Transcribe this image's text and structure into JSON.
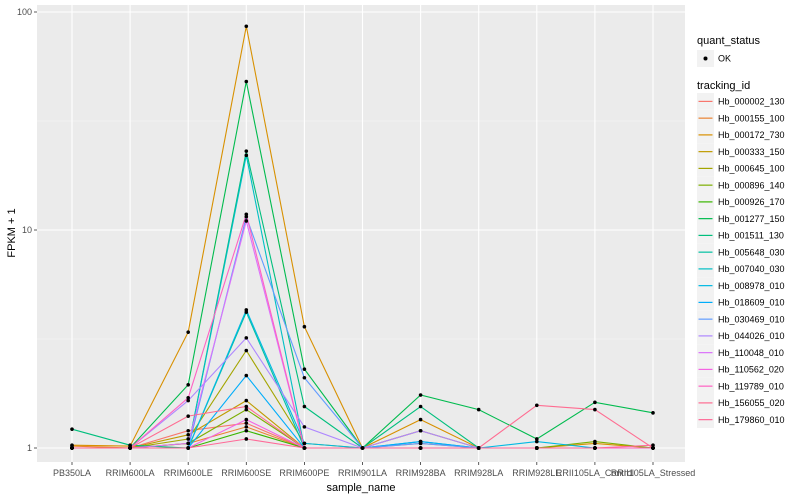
{
  "chart_data": {
    "type": "line",
    "xlabel": "sample_name",
    "ylabel": "FPKM + 1",
    "y_scale": "log10",
    "ylim": [
      1,
      100
    ],
    "y_ticks": [
      1,
      10,
      100
    ],
    "y_tick_labels": [
      "1",
      "10",
      "100"
    ],
    "grid": true,
    "legend_position": "right",
    "categories": [
      "PB350LA",
      "RRIM600LA",
      "RRIM600LE",
      "RRIM600SE",
      "RRIM600PE",
      "RRIM901LA",
      "RRIM928BA",
      "RRIM928LA",
      "RRIM928LE",
      "RRII105LA_Control",
      "RRII105LA_Stressed"
    ],
    "shape_legend": {
      "title": "quant_status",
      "items": [
        "OK"
      ]
    },
    "color_legend_title": "tracking_id",
    "series": [
      {
        "name": "Hb_000002_130",
        "color": "#F8766D",
        "values": [
          1.0,
          1.0,
          1.2,
          1.3,
          1.0,
          1.0,
          1.0,
          1.0,
          1.0,
          1.0,
          1.0
        ]
      },
      {
        "name": "Hb_000155_100",
        "color": "#EA8331",
        "values": [
          1.02,
          1.0,
          1.05,
          1.25,
          1.0,
          1.0,
          1.05,
          1.0,
          1.0,
          1.0,
          1.0
        ]
      },
      {
        "name": "Hb_000172_730",
        "color": "#D89000",
        "values": [
          1.03,
          1.02,
          3.4,
          86,
          3.6,
          1.0,
          1.35,
          1.0,
          1.0,
          1.05,
          1.0
        ]
      },
      {
        "name": "Hb_000333_150",
        "color": "#C09B00",
        "values": [
          1.0,
          1.0,
          1.15,
          1.65,
          1.0,
          1.0,
          1.2,
          1.0,
          1.0,
          1.0,
          1.0
        ]
      },
      {
        "name": "Hb_000645_100",
        "color": "#A3A500",
        "values": [
          1.0,
          1.0,
          1.1,
          2.8,
          1.05,
          1.0,
          1.0,
          1.0,
          1.0,
          1.0,
          1.0
        ]
      },
      {
        "name": "Hb_000896_140",
        "color": "#7CAE00",
        "values": [
          1.0,
          1.0,
          1.05,
          1.5,
          1.0,
          1.0,
          1.0,
          1.0,
          1.0,
          1.07,
          1.0
        ]
      },
      {
        "name": "Hb_000926_170",
        "color": "#39B600",
        "values": [
          1.0,
          1.0,
          1.0,
          1.2,
          1.0,
          1.0,
          1.0,
          1.0,
          1.0,
          1.0,
          1.0
        ]
      },
      {
        "name": "Hb_001277_150",
        "color": "#00BB4E",
        "values": [
          1.0,
          1.0,
          1.95,
          48,
          2.3,
          1.0,
          1.75,
          1.5,
          1.1,
          1.62,
          1.45
        ]
      },
      {
        "name": "Hb_001511_130",
        "color": "#00BF7D",
        "values": [
          1.22,
          1.03,
          1.0,
          23,
          1.55,
          1.0,
          1.55,
          1.0,
          1.0,
          1.0,
          1.0
        ]
      },
      {
        "name": "Hb_005648_030",
        "color": "#00C1A3",
        "values": [
          1.0,
          1.0,
          1.0,
          4.2,
          1.0,
          1.0,
          1.0,
          1.0,
          1.0,
          1.0,
          1.0
        ]
      },
      {
        "name": "Hb_007040_030",
        "color": "#00BFC4",
        "values": [
          1.0,
          1.0,
          1.0,
          22,
          1.0,
          1.0,
          1.07,
          1.0,
          1.0,
          1.0,
          1.0
        ]
      },
      {
        "name": "Hb_008978_010",
        "color": "#00B9E3",
        "values": [
          1.0,
          1.0,
          1.0,
          4.3,
          1.05,
          1.0,
          1.0,
          1.0,
          1.07,
          1.0,
          1.0
        ]
      },
      {
        "name": "Hb_018609_010",
        "color": "#00ADFA",
        "values": [
          1.0,
          1.0,
          1.0,
          2.15,
          1.0,
          1.0,
          1.07,
          1.0,
          1.0,
          1.0,
          1.0
        ]
      },
      {
        "name": "Hb_030469_010",
        "color": "#619CFF",
        "values": [
          1.0,
          1.0,
          1.0,
          11.5,
          2.1,
          1.0,
          1.05,
          1.0,
          1.0,
          1.0,
          1.0
        ]
      },
      {
        "name": "Hb_044026_010",
        "color": "#AE87FF",
        "values": [
          1.0,
          1.0,
          1.65,
          3.2,
          1.25,
          1.0,
          1.2,
          1.0,
          1.0,
          1.0,
          1.0
        ]
      },
      {
        "name": "Hb_110048_010",
        "color": "#DB72FB",
        "values": [
          1.0,
          1.0,
          1.05,
          11,
          1.0,
          1.0,
          1.0,
          1.0,
          1.0,
          1.0,
          1.0
        ]
      },
      {
        "name": "Hb_110562_020",
        "color": "#F564E3",
        "values": [
          1.0,
          1.0,
          1.0,
          1.35,
          1.0,
          1.0,
          1.0,
          1.0,
          1.0,
          1.0,
          1.0
        ]
      },
      {
        "name": "Hb_119789_010",
        "color": "#FF61C3",
        "values": [
          1.0,
          1.0,
          1.7,
          11.8,
          1.0,
          1.0,
          1.0,
          1.0,
          1.0,
          1.0,
          1.0
        ]
      },
      {
        "name": "Hb_156055_020",
        "color": "#FF6C91",
        "values": [
          1.0,
          1.0,
          1.4,
          1.55,
          1.0,
          1.0,
          1.0,
          1.0,
          1.57,
          1.5,
          1.0
        ]
      },
      {
        "name": "Hb_179860_010",
        "color": "#FF6A98",
        "values": [
          1.0,
          1.0,
          1.0,
          1.1,
          1.0,
          1.0,
          1.0,
          1.0,
          1.0,
          1.0,
          1.03
        ]
      }
    ]
  }
}
